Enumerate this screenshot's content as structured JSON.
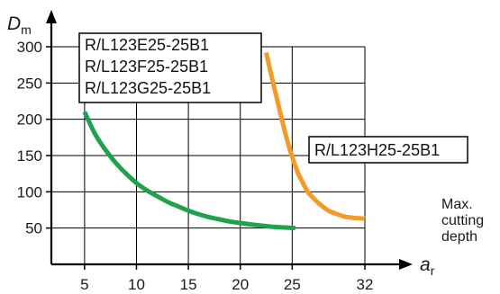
{
  "chart_data": {
    "type": "line",
    "x_axis": {
      "label_main": "a",
      "label_sub": "r",
      "ticks": [
        5,
        10,
        15,
        20,
        25,
        32
      ],
      "range": [
        1.8,
        32
      ]
    },
    "y_axis": {
      "label_main": "D",
      "label_sub": "m",
      "ticks": [
        50,
        100,
        150,
        200,
        250,
        300
      ],
      "range": [
        0,
        300
      ]
    },
    "grid": true,
    "series": [
      {
        "name": "R/L123E25-25B1\nR/L123F25-25B1\nR/L123G25-25B1",
        "color": "#1fa24b",
        "x": [
          5,
          6,
          7,
          8,
          9,
          10,
          11,
          12,
          13,
          14,
          15,
          16,
          17,
          18,
          19,
          20,
          21,
          22,
          23,
          24,
          25.3
        ],
        "y": [
          210,
          180,
          158,
          140,
          125,
          112,
          102,
          94,
          86,
          80,
          74,
          69,
          65,
          62,
          59,
          57,
          55,
          53.5,
          52,
          51,
          50
        ]
      },
      {
        "name": "R/L123H25-25B1",
        "color": "#f39a27",
        "x": [
          22.5,
          23,
          23.5,
          24,
          24.5,
          25,
          25.5,
          26,
          26.5,
          27,
          27.5,
          28,
          28.5,
          29,
          30,
          31,
          32
        ],
        "y": [
          292,
          260,
          230,
          200,
          172,
          148,
          128,
          113,
          100,
          92,
          85,
          79,
          74,
          71,
          66,
          64,
          63
        ]
      }
    ],
    "legend": {
      "group_lines": [
        "R/L123E25-25B1",
        "R/L123F25-25B1",
        "R/L123G25-25B1"
      ],
      "single_line": "R/L123H25-25B1"
    },
    "annotation": [
      "Max.",
      "cutting",
      "depth"
    ]
  }
}
